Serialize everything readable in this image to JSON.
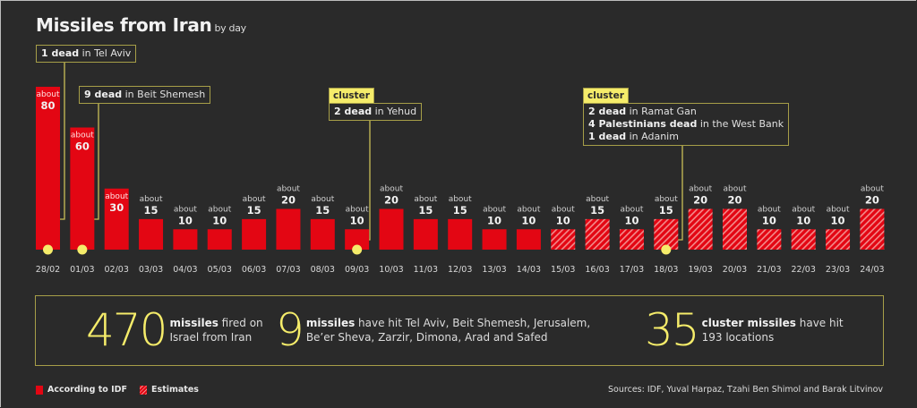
{
  "header": {
    "title": "Missiles from Iran",
    "subtitle": "by day"
  },
  "chart_data": {
    "type": "bar",
    "title": "Missiles from Iran",
    "subtitle": "by day",
    "xlabel": "",
    "ylabel": "",
    "ylim": [
      0,
      80
    ],
    "grid": false,
    "value_prefix": "about",
    "categories": [
      "28/02",
      "01/03",
      "02/03",
      "03/03",
      "04/03",
      "05/03",
      "06/03",
      "07/03",
      "08/03",
      "09/03",
      "10/03",
      "11/03",
      "12/03",
      "13/03",
      "14/03",
      "15/03",
      "16/03",
      "17/03",
      "18/03",
      "19/03",
      "20/03",
      "21/03",
      "22/03",
      "23/03",
      "24/03"
    ],
    "values": [
      80,
      60,
      30,
      15,
      10,
      10,
      15,
      20,
      15,
      10,
      20,
      15,
      15,
      10,
      10,
      10,
      15,
      10,
      15,
      20,
      20,
      10,
      10,
      10,
      20
    ],
    "source": [
      "idf",
      "idf",
      "idf",
      "idf",
      "idf",
      "idf",
      "idf",
      "idf",
      "idf",
      "idf",
      "idf",
      "idf",
      "idf",
      "idf",
      "idf",
      "estimate",
      "estimate",
      "estimate",
      "estimate",
      "estimate",
      "estimate",
      "estimate",
      "estimate",
      "estimate",
      "estimate"
    ],
    "series": [
      {
        "name": "According to IDF",
        "style": "solid"
      },
      {
        "name": "Estimates",
        "style": "hatched"
      }
    ],
    "annotations": [
      {
        "date": "28/02",
        "cluster": false,
        "lines": [
          {
            "bold": "1 dead",
            "rest": " in Tel Aviv"
          }
        ]
      },
      {
        "date": "01/03",
        "cluster": false,
        "lines": [
          {
            "bold": "9 dead",
            "rest": " in Beit Shemesh"
          }
        ]
      },
      {
        "date": "09/03",
        "cluster": true,
        "lines": [
          {
            "bold": "2 dead",
            "rest": " in Yehud"
          }
        ]
      },
      {
        "date": "18/03",
        "cluster": true,
        "lines": [
          {
            "bold": "2 dead",
            "rest": " in Ramat Gan"
          },
          {
            "bold": "4 Palestinians dead",
            "rest": " in the West Bank"
          },
          {
            "bold": "1 dead",
            "rest": " in Adanim"
          }
        ]
      }
    ],
    "legend": "bottom-left"
  },
  "annotations_text": {
    "cluster_label": "cluster",
    "a1": {
      "bold": "1 dead",
      "rest": " in Tel Aviv"
    },
    "a2": {
      "bold": "9 dead",
      "rest": " in Beit Shemesh"
    },
    "a3": {
      "bold": "2 dead",
      "rest": " in Yehud"
    },
    "a4": [
      {
        "bold": "2 dead",
        "rest": " in Ramat Gan"
      },
      {
        "bold": "4 Palestinians dead",
        "rest": " in the West Bank"
      },
      {
        "bold": "1 dead",
        "rest": " in Adanim"
      }
    ]
  },
  "stats": [
    {
      "number": "470",
      "bold": "missiles",
      "line1_rest": " fired on",
      "line2": "Israel from Iran"
    },
    {
      "number": "9",
      "bold": "missiles",
      "line1_rest": " have hit Tel Aviv, Beit Shemesh, Jerusalem,",
      "line2": "Be’er Sheva, Zarzir, Dimona, Arad and Safed"
    },
    {
      "number": "35",
      "bold": "cluster missiles",
      "line1_rest": " have hit",
      "line2": "193 locations"
    }
  ],
  "legend": {
    "idf": "According to IDF",
    "estimates": "Estimates"
  },
  "sources": "Sources: IDF, Yuval Harpaz, Tzahi Ben Shimol and Barak Litvinov",
  "colors": {
    "bar": "#e30613",
    "hatch": "#f28b8b",
    "accent": "#f5ec6a",
    "border": "#a69e48",
    "background": "#2a2a2a"
  }
}
